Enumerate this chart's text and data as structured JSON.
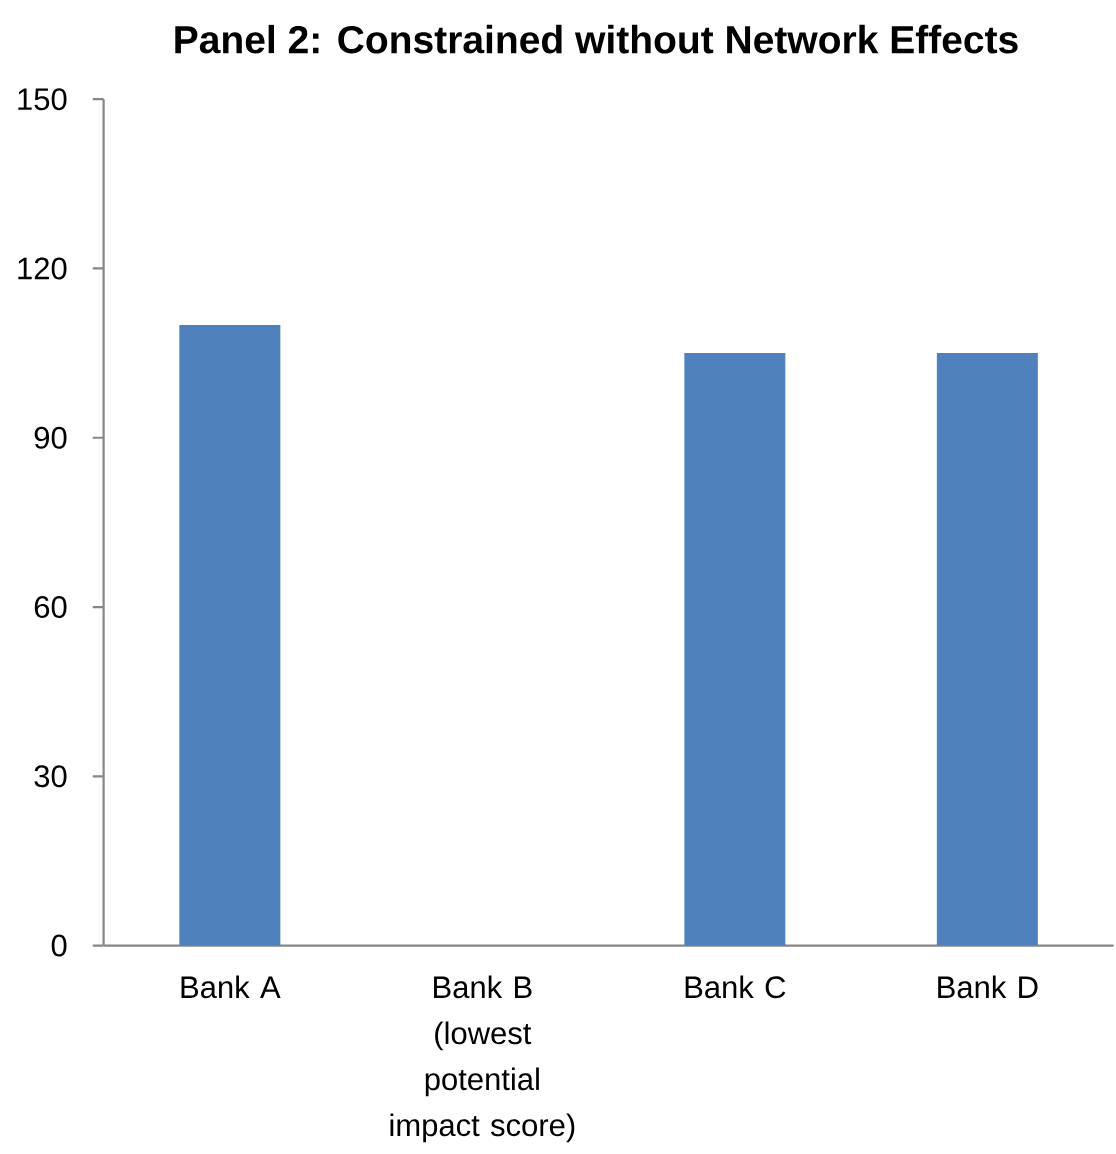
{
  "chart_data": {
    "type": "bar",
    "title": "Panel 2: Constrained without Network Effects",
    "categories": [
      "Bank A",
      "Bank B (lowest potential impact score)",
      "Bank C",
      "Bank D"
    ],
    "values": [
      110,
      0,
      105,
      105
    ],
    "color": "#4f81bd",
    "ylim": [
      0,
      150
    ],
    "yticks": [
      0,
      30,
      60,
      90,
      120,
      150
    ]
  }
}
